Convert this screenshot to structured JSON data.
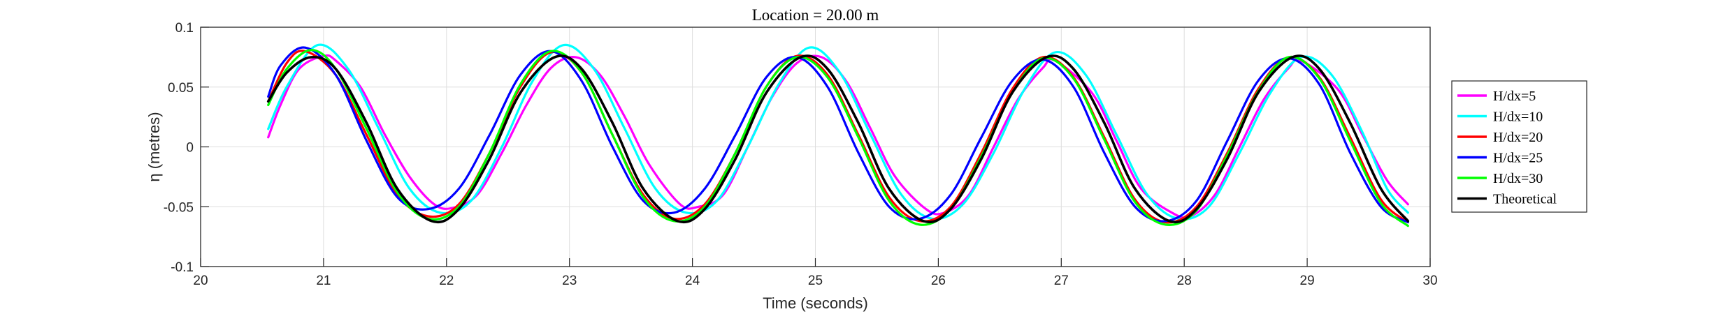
{
  "chart_data": {
    "type": "line",
    "title": "Location = 20.00 m",
    "xlabel": "Time (seconds)",
    "ylabel": "η (metres)",
    "xlim": [
      20,
      30
    ],
    "ylim": [
      -0.1,
      0.1
    ],
    "xticks": [
      "20",
      "21",
      "22",
      "23",
      "24",
      "25",
      "26",
      "27",
      "28",
      "29",
      "30"
    ],
    "yticks": [
      "0.1",
      "0.05",
      "0",
      "-0.05",
      "-0.1"
    ],
    "grid": true,
    "legend_position": "right",
    "series": [
      {
        "name": "H/dx=5",
        "color": "#ff00ff",
        "x": [
          20.55,
          20.65,
          20.8,
          21.0,
          21.1,
          21.3,
          21.5,
          21.7,
          21.9,
          22.05,
          22.25,
          22.45,
          22.65,
          22.85,
          23.05,
          23.25,
          23.45,
          23.65,
          23.9,
          24.05,
          24.25,
          24.45,
          24.65,
          24.85,
          25.05,
          25.25,
          25.45,
          25.65,
          25.9,
          26.05,
          26.25,
          26.45,
          26.65,
          26.85,
          26.95,
          27.25,
          27.45,
          27.65,
          27.9,
          28.05,
          28.25,
          28.45,
          28.65,
          28.85,
          28.95,
          29.25,
          29.45,
          29.65,
          29.82
        ],
        "y": [
          0.008,
          0.035,
          0.065,
          0.076,
          0.072,
          0.05,
          0.01,
          -0.025,
          -0.048,
          -0.051,
          -0.04,
          -0.005,
          0.035,
          0.066,
          0.075,
          0.06,
          0.025,
          -0.015,
          -0.048,
          -0.05,
          -0.04,
          0.0,
          0.042,
          0.07,
          0.075,
          0.055,
          0.015,
          -0.025,
          -0.052,
          -0.055,
          -0.04,
          0.0,
          0.04,
          0.066,
          0.072,
          0.045,
          0.005,
          -0.035,
          -0.055,
          -0.058,
          -0.04,
          0.0,
          0.04,
          0.066,
          0.072,
          0.048,
          0.01,
          -0.028,
          -0.048
        ]
      },
      {
        "name": "H/dx=10",
        "color": "#00ffff",
        "x": [
          20.55,
          20.7,
          20.95,
          21.2,
          21.45,
          21.7,
          21.95,
          22.2,
          22.45,
          22.7,
          22.95,
          23.2,
          23.45,
          23.7,
          23.95,
          24.2,
          24.45,
          24.7,
          24.95,
          25.2,
          25.45,
          25.7,
          25.95,
          26.2,
          26.45,
          26.7,
          26.95,
          27.2,
          27.45,
          27.7,
          27.95,
          28.2,
          28.45,
          28.7,
          28.95,
          29.2,
          29.45,
          29.65,
          29.82
        ],
        "y": [
          0.015,
          0.05,
          0.085,
          0.065,
          0.015,
          -0.035,
          -0.055,
          -0.045,
          0.0,
          0.055,
          0.085,
          0.065,
          0.015,
          -0.035,
          -0.055,
          -0.045,
          0.0,
          0.052,
          0.083,
          0.062,
          0.01,
          -0.04,
          -0.06,
          -0.048,
          -0.005,
          0.048,
          0.079,
          0.06,
          0.01,
          -0.04,
          -0.06,
          -0.05,
          -0.005,
          0.045,
          0.075,
          0.06,
          0.012,
          -0.035,
          -0.055
        ]
      },
      {
        "name": "H/dx=20",
        "color": "#ff0000",
        "x": [
          20.55,
          20.7,
          20.85,
          21.1,
          21.35,
          21.6,
          21.85,
          22.1,
          22.35,
          22.6,
          22.85,
          23.1,
          23.35,
          23.6,
          23.85,
          24.1,
          24.35,
          24.6,
          24.85,
          25.1,
          25.35,
          25.6,
          25.85,
          26.1,
          26.35,
          26.6,
          26.85,
          27.1,
          27.35,
          27.6,
          27.85,
          28.1,
          28.35,
          28.6,
          28.85,
          29.1,
          29.35,
          29.6,
          29.82
        ],
        "y": [
          0.038,
          0.07,
          0.08,
          0.06,
          0.01,
          -0.04,
          -0.058,
          -0.048,
          -0.005,
          0.05,
          0.079,
          0.062,
          0.01,
          -0.04,
          -0.06,
          -0.048,
          -0.005,
          0.05,
          0.076,
          0.06,
          0.01,
          -0.042,
          -0.062,
          -0.05,
          -0.005,
          0.048,
          0.075,
          0.058,
          0.008,
          -0.044,
          -0.063,
          -0.05,
          -0.005,
          0.048,
          0.075,
          0.058,
          0.008,
          -0.044,
          -0.063
        ]
      },
      {
        "name": "H/dx=25",
        "color": "#0000ff",
        "x": [
          20.55,
          20.65,
          20.85,
          21.1,
          21.35,
          21.6,
          21.85,
          22.1,
          22.35,
          22.6,
          22.85,
          23.1,
          23.35,
          23.6,
          23.85,
          24.1,
          24.35,
          24.6,
          24.85,
          25.1,
          25.35,
          25.6,
          25.85,
          26.1,
          26.35,
          26.6,
          26.85,
          27.1,
          27.35,
          27.6,
          27.85,
          28.1,
          28.35,
          28.6,
          28.85,
          29.1,
          29.35,
          29.6,
          29.82
        ],
        "y": [
          0.042,
          0.068,
          0.083,
          0.06,
          0.005,
          -0.042,
          -0.052,
          -0.035,
          0.01,
          0.06,
          0.08,
          0.055,
          0.0,
          -0.045,
          -0.055,
          -0.035,
          0.01,
          0.058,
          0.075,
          0.05,
          -0.005,
          -0.05,
          -0.06,
          -0.04,
          0.008,
          0.055,
          0.073,
          0.05,
          -0.005,
          -0.05,
          -0.062,
          -0.045,
          0.005,
          0.055,
          0.074,
          0.052,
          -0.005,
          -0.05,
          -0.063
        ]
      },
      {
        "name": "H/dx=30",
        "color": "#00ff00",
        "x": [
          20.55,
          20.7,
          20.9,
          21.1,
          21.35,
          21.6,
          21.85,
          22.1,
          22.35,
          22.6,
          22.85,
          23.1,
          23.35,
          23.6,
          23.85,
          24.1,
          24.35,
          24.6,
          24.85,
          25.1,
          25.35,
          25.6,
          25.85,
          26.1,
          26.35,
          26.6,
          26.85,
          27.1,
          27.35,
          27.6,
          27.85,
          28.1,
          28.35,
          28.6,
          28.85,
          29.1,
          29.35,
          29.6,
          29.82
        ],
        "y": [
          0.035,
          0.065,
          0.081,
          0.065,
          0.015,
          -0.038,
          -0.06,
          -0.05,
          -0.005,
          0.052,
          0.08,
          0.062,
          0.01,
          -0.042,
          -0.062,
          -0.05,
          -0.005,
          0.05,
          0.075,
          0.058,
          0.008,
          -0.045,
          -0.065,
          -0.052,
          -0.008,
          0.045,
          0.074,
          0.057,
          0.006,
          -0.046,
          -0.065,
          -0.053,
          -0.007,
          0.046,
          0.075,
          0.057,
          0.005,
          -0.047,
          -0.066
        ]
      },
      {
        "name": "Theoretical",
        "color": "#000000",
        "x": [
          20.55,
          20.7,
          20.9,
          21.1,
          21.35,
          21.6,
          21.88,
          22.1,
          22.35,
          22.6,
          22.88,
          23.1,
          23.35,
          23.6,
          23.88,
          24.1,
          24.35,
          24.6,
          24.88,
          25.1,
          25.35,
          25.6,
          25.88,
          26.1,
          26.35,
          26.6,
          26.88,
          27.1,
          27.35,
          27.6,
          27.88,
          28.1,
          28.35,
          28.6,
          28.88,
          29.1,
          29.35,
          29.6,
          29.82
        ],
        "y": [
          0.038,
          0.062,
          0.075,
          0.065,
          0.02,
          -0.035,
          -0.062,
          -0.052,
          -0.01,
          0.045,
          0.075,
          0.065,
          0.02,
          -0.035,
          -0.062,
          -0.052,
          -0.01,
          0.045,
          0.075,
          0.065,
          0.02,
          -0.035,
          -0.062,
          -0.052,
          -0.01,
          0.045,
          0.075,
          0.065,
          0.02,
          -0.035,
          -0.062,
          -0.052,
          -0.01,
          0.045,
          0.075,
          0.065,
          0.02,
          -0.035,
          -0.062
        ]
      }
    ]
  }
}
